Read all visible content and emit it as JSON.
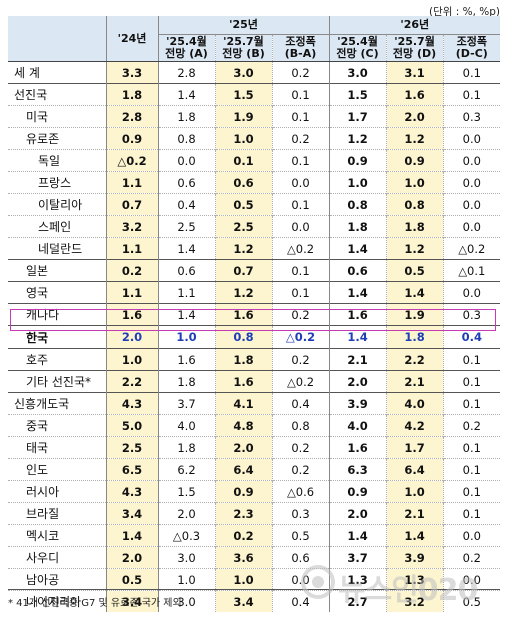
{
  "unit_label": "(단위 : %, %p)",
  "header": {
    "y24": "'24년",
    "y25": "'25년",
    "y26": "'26년",
    "apr25": "'25.4월",
    "apr25_sub": "전망 (A)",
    "jul25": "'25.7월",
    "jul25_sub": "전망 (B)",
    "adj25": "조정폭",
    "adj25_sub": "(B-A)",
    "apr26": "'25.4월",
    "apr26_sub": "전망 (C)",
    "jul26": "'25.7월",
    "jul26_sub": "전망 (D)",
    "adj26": "조정폭",
    "adj26_sub": "(D-C)"
  },
  "rows": [
    {
      "name": "세  계",
      "v": [
        "3.3",
        "2.8",
        "3.0",
        "0.2",
        "3.0",
        "3.1",
        "0.1"
      ]
    },
    {
      "name": "선진국",
      "v": [
        "1.8",
        "1.4",
        "1.5",
        "0.1",
        "1.5",
        "1.6",
        "0.1"
      ]
    },
    {
      "name": "미국",
      "v": [
        "2.8",
        "1.8",
        "1.9",
        "0.1",
        "1.7",
        "2.0",
        "0.3"
      ]
    },
    {
      "name": "유로존",
      "v": [
        "0.9",
        "0.8",
        "1.0",
        "0.2",
        "1.2",
        "1.2",
        "0.0"
      ]
    },
    {
      "name": "독일",
      "v": [
        "△0.2",
        "0.0",
        "0.1",
        "0.1",
        "0.9",
        "0.9",
        "0.0"
      ]
    },
    {
      "name": "프랑스",
      "v": [
        "1.1",
        "0.6",
        "0.6",
        "0.0",
        "1.0",
        "1.0",
        "0.0"
      ]
    },
    {
      "name": "이탈리아",
      "v": [
        "0.7",
        "0.4",
        "0.5",
        "0.1",
        "0.8",
        "0.8",
        "0.0"
      ]
    },
    {
      "name": "스페인",
      "v": [
        "3.2",
        "2.5",
        "2.5",
        "0.0",
        "1.8",
        "1.8",
        "0.0"
      ]
    },
    {
      "name": "네덜란드",
      "v": [
        "1.1",
        "1.4",
        "1.2",
        "△0.2",
        "1.4",
        "1.2",
        "△0.2"
      ]
    },
    {
      "name": "일본",
      "v": [
        "0.2",
        "0.6",
        "0.7",
        "0.1",
        "0.6",
        "0.5",
        "△0.1"
      ]
    },
    {
      "name": "영국",
      "v": [
        "1.1",
        "1.1",
        "1.2",
        "0.1",
        "1.4",
        "1.4",
        "0.0"
      ]
    },
    {
      "name": "캐나다",
      "v": [
        "1.6",
        "1.4",
        "1.6",
        "0.2",
        "1.6",
        "1.9",
        "0.3"
      ]
    },
    {
      "name": "한국",
      "v": [
        "2.0",
        "1.0",
        "0.8",
        "△0.2",
        "1.4",
        "1.8",
        "0.4"
      ]
    },
    {
      "name": "호주",
      "v": [
        "1.0",
        "1.6",
        "1.8",
        "0.2",
        "2.1",
        "2.2",
        "0.1"
      ]
    },
    {
      "name": "기타 선진국*",
      "v": [
        "2.2",
        "1.8",
        "1.6",
        "△0.2",
        "2.0",
        "2.1",
        "0.1"
      ]
    },
    {
      "name": "신흥개도국",
      "v": [
        "4.3",
        "3.7",
        "4.1",
        "0.4",
        "3.9",
        "4.0",
        "0.1"
      ]
    },
    {
      "name": "중국",
      "v": [
        "5.0",
        "4.0",
        "4.8",
        "0.8",
        "4.0",
        "4.2",
        "0.2"
      ]
    },
    {
      "name": "태국",
      "v": [
        "2.5",
        "1.8",
        "2.0",
        "0.2",
        "1.6",
        "1.7",
        "0.1"
      ]
    },
    {
      "name": "인도",
      "v": [
        "6.5",
        "6.2",
        "6.4",
        "0.2",
        "6.3",
        "6.4",
        "0.1"
      ]
    },
    {
      "name": "러시아",
      "v": [
        "4.3",
        "1.5",
        "0.9",
        "△0.6",
        "0.9",
        "1.0",
        "0.1"
      ]
    },
    {
      "name": "브라질",
      "v": [
        "3.4",
        "2.0",
        "2.3",
        "0.3",
        "2.0",
        "2.1",
        "0.1"
      ]
    },
    {
      "name": "멕시코",
      "v": [
        "1.4",
        "△0.3",
        "0.2",
        "0.5",
        "1.4",
        "1.4",
        "0.0"
      ]
    },
    {
      "name": "사우디",
      "v": [
        "2.0",
        "3.0",
        "3.6",
        "0.6",
        "3.7",
        "3.9",
        "0.2"
      ]
    },
    {
      "name": "남아공",
      "v": [
        "0.5",
        "1.0",
        "1.0",
        "0.0",
        "1.3",
        "1.3",
        "0.0"
      ]
    },
    {
      "name": "나이지리아",
      "v": [
        "3.4",
        "3.0",
        "3.4",
        "0.4",
        "2.7",
        "3.2",
        "0.5"
      ]
    }
  ],
  "footnote": "* 41개 선진국중 G7 및 유로존 국가 제외",
  "watermark": "뉴스인020"
}
